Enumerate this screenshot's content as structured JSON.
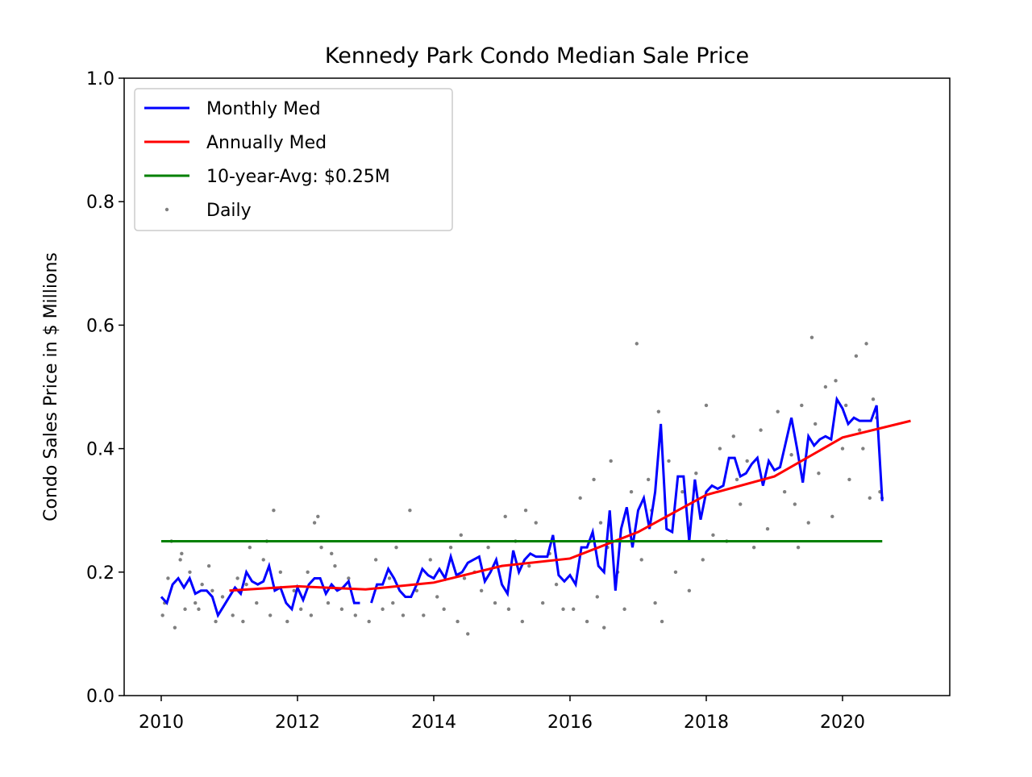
{
  "chart_data": {
    "type": "line",
    "title": "Kennedy Park Condo Median Sale Price",
    "y_label": "Condo Sales Price in $ Millions",
    "xlim": [
      2009.456,
      2021.574
    ],
    "ylim": [
      0,
      1
    ],
    "xticks": [
      2010,
      2012,
      2014,
      2016,
      2018,
      2020
    ],
    "yticks": [
      {
        "value": 0,
        "label": "0.0"
      },
      0.2,
      0.4,
      0.6,
      0.8,
      {
        "value": 1,
        "label": "1.0"
      }
    ],
    "legend": "upper left",
    "series": [
      {
        "name": "Monthly Med",
        "type": "line",
        "color": "#0000ff",
        "x": [
          2010,
          2010.083,
          2010.167,
          2010.25,
          2010.333,
          2010.417,
          2010.5,
          2010.583,
          2010.667,
          2010.75,
          2010.833,
          2010.917,
          2011,
          2011.083,
          2011.167,
          2011.25,
          2011.333,
          2011.417,
          2011.5,
          2011.583,
          2011.667,
          2011.75,
          2011.833,
          2011.917,
          2012,
          2012.083,
          2012.167,
          2012.25,
          2012.333,
          2012.417,
          2012.5,
          2012.583,
          2012.667,
          2012.75,
          2012.833,
          2012.917,
          2013,
          2013.083,
          2013.167,
          2013.25,
          2013.333,
          2013.417,
          2013.5,
          2013.583,
          2013.667,
          2013.75,
          2013.833,
          2013.917,
          2014,
          2014.083,
          2014.167,
          2014.25,
          2014.333,
          2014.417,
          2014.5,
          2014.583,
          2014.667,
          2014.75,
          2014.833,
          2014.917,
          2015,
          2015.083,
          2015.167,
          2015.25,
          2015.333,
          2015.417,
          2015.5,
          2015.583,
          2015.667,
          2015.75,
          2015.833,
          2015.917,
          2016,
          2016.083,
          2016.167,
          2016.25,
          2016.333,
          2016.417,
          2016.5,
          2016.583,
          2016.667,
          2016.75,
          2016.833,
          2016.917,
          2017,
          2017.083,
          2017.167,
          2017.25,
          2017.333,
          2017.417,
          2017.5,
          2017.583,
          2017.667,
          2017.75,
          2017.833,
          2017.917,
          2018,
          2018.083,
          2018.167,
          2018.25,
          2018.333,
          2018.417,
          2018.5,
          2018.583,
          2018.667,
          2018.75,
          2018.833,
          2018.917,
          2019,
          2019.083,
          2019.167,
          2019.25,
          2019.333,
          2019.417,
          2019.5,
          2019.583,
          2019.667,
          2019.75,
          2019.833,
          2019.917,
          2020,
          2020.083,
          2020.167,
          2020.25,
          2020.333,
          2020.417,
          2020.5,
          2020.583
        ],
        "values": [
          0.16,
          0.15,
          0.18,
          0.19,
          0.175,
          0.19,
          0.165,
          0.17,
          0.17,
          0.16,
          0.13,
          0.145,
          0.16,
          0.175,
          0.165,
          0.2,
          0.185,
          0.18,
          0.185,
          0.21,
          0.17,
          0.175,
          0.15,
          0.14,
          0.175,
          0.155,
          0.18,
          0.19,
          0.19,
          0.165,
          0.18,
          0.17,
          0.175,
          0.185,
          0.15,
          0.15,
          null,
          0.15,
          0.18,
          0.18,
          0.205,
          0.19,
          0.17,
          0.16,
          0.16,
          0.18,
          0.205,
          0.195,
          0.19,
          0.205,
          0.19,
          0.225,
          0.195,
          0.2,
          0.215,
          0.22,
          0.225,
          0.185,
          0.2,
          0.22,
          0.18,
          0.165,
          0.235,
          0.2,
          0.22,
          0.23,
          0.225,
          0.225,
          0.225,
          0.26,
          0.195,
          0.185,
          0.195,
          0.18,
          0.24,
          0.24,
          0.265,
          0.21,
          0.2,
          0.3,
          0.17,
          0.27,
          0.305,
          0.24,
          0.3,
          0.32,
          0.27,
          0.33,
          0.44,
          0.27,
          0.265,
          0.355,
          0.355,
          0.25,
          0.35,
          0.285,
          0.33,
          0.34,
          0.335,
          0.34,
          0.385,
          0.385,
          0.355,
          0.36,
          0.375,
          0.385,
          0.34,
          0.38,
          0.365,
          0.37,
          0.41,
          0.45,
          0.4,
          0.345,
          0.42,
          0.405,
          0.415,
          0.42,
          0.415,
          0.48,
          0.465,
          0.44,
          0.45,
          0.445,
          0.445,
          0.445,
          0.47,
          0.315
        ]
      },
      {
        "name": "Annually Med",
        "type": "line",
        "color": "#ff0000",
        "x": [
          2011,
          2012,
          2013,
          2014,
          2015,
          2016,
          2017,
          2018,
          2019,
          2020,
          2021
        ],
        "values": [
          0.17,
          0.177,
          0.172,
          0.183,
          0.21,
          0.222,
          0.265,
          0.325,
          0.355,
          0.418,
          0.445
        ]
      },
      {
        "name": "10-year-Avg: $0.25M",
        "type": "line",
        "color": "#008000",
        "x": [
          2010,
          2020.583
        ],
        "values": [
          0.25,
          0.25
        ]
      },
      {
        "name": "Daily",
        "type": "scatter",
        "color": "#808080",
        "x": [
          2010.02,
          2010.1,
          2010.15,
          2010.2,
          2010.28,
          2010.35,
          2010.42,
          2010.5,
          2010.6,
          2010.7,
          2010.8,
          2010.9,
          2010.05,
          2010.3,
          2010.55,
          2010.75,
          2011.05,
          2011.12,
          2011.2,
          2011.3,
          2011.4,
          2011.5,
          2011.6,
          2011.65,
          2011.75,
          2011.85,
          2011.95,
          2011.25,
          2011.55,
          2012.05,
          2012.15,
          2012.2,
          2012.25,
          2012.35,
          2012.45,
          2012.55,
          2012.65,
          2012.75,
          2012.85,
          2012.3,
          2012.5,
          2013.05,
          2013.15,
          2013.25,
          2013.35,
          2013.45,
          2013.55,
          2013.65,
          2013.75,
          2013.85,
          2013.95,
          2013.4,
          2014.05,
          2014.15,
          2014.25,
          2014.35,
          2014.4,
          2014.5,
          2014.6,
          2014.7,
          2014.8,
          2014.9,
          2014.45,
          2015.05,
          2015.1,
          2015.2,
          2015.3,
          2015.4,
          2015.5,
          2015.6,
          2015.7,
          2015.8,
          2015.9,
          2015.35,
          2016.05,
          2016.15,
          2016.25,
          2016.35,
          2016.4,
          2016.45,
          2016.5,
          2016.6,
          2016.7,
          2016.8,
          2016.9,
          2016.55,
          2016.3,
          2016.98,
          2017.05,
          2017.15,
          2017.25,
          2017.3,
          2017.35,
          2017.45,
          2017.55,
          2017.65,
          2017.75,
          2017.85,
          2017.95,
          2017.2,
          2018.0,
          2018.1,
          2018.2,
          2018.3,
          2018.4,
          2018.5,
          2018.6,
          2018.7,
          2018.8,
          2018.9,
          2018.45,
          2019.05,
          2019.15,
          2019.25,
          2019.35,
          2019.4,
          2019.5,
          2019.55,
          2019.65,
          2019.75,
          2019.85,
          2019.9,
          2019.3,
          2019.6,
          2020.0,
          2020.05,
          2020.1,
          2020.2,
          2020.25,
          2020.3,
          2020.35,
          2020.4,
          2020.45,
          2020.5,
          2020.55,
          2020.58
        ],
        "values": [
          0.13,
          0.19,
          0.25,
          0.11,
          0.22,
          0.14,
          0.2,
          0.15,
          0.18,
          0.21,
          0.12,
          0.16,
          0.15,
          0.23,
          0.14,
          0.17,
          0.13,
          0.19,
          0.12,
          0.24,
          0.15,
          0.22,
          0.13,
          0.3,
          0.2,
          0.12,
          0.17,
          0.18,
          0.25,
          0.14,
          0.2,
          0.13,
          0.28,
          0.24,
          0.15,
          0.21,
          0.14,
          0.19,
          0.13,
          0.29,
          0.23,
          0.12,
          0.22,
          0.14,
          0.19,
          0.24,
          0.13,
          0.3,
          0.17,
          0.13,
          0.22,
          0.15,
          0.16,
          0.14,
          0.24,
          0.12,
          0.26,
          0.1,
          0.2,
          0.17,
          0.24,
          0.15,
          0.19,
          0.29,
          0.14,
          0.25,
          0.12,
          0.21,
          0.28,
          0.15,
          0.23,
          0.18,
          0.14,
          0.3,
          0.14,
          0.32,
          0.12,
          0.35,
          0.16,
          0.28,
          0.11,
          0.38,
          0.2,
          0.14,
          0.33,
          0.24,
          0.25,
          0.57,
          0.22,
          0.35,
          0.15,
          0.46,
          0.12,
          0.38,
          0.2,
          0.33,
          0.17,
          0.36,
          0.22,
          0.3,
          0.47,
          0.26,
          0.4,
          0.25,
          0.42,
          0.31,
          0.38,
          0.24,
          0.43,
          0.27,
          0.35,
          0.46,
          0.33,
          0.39,
          0.24,
          0.47,
          0.28,
          0.58,
          0.36,
          0.5,
          0.29,
          0.51,
          0.31,
          0.44,
          0.4,
          0.47,
          0.35,
          0.55,
          0.43,
          0.4,
          0.57,
          0.32,
          0.48,
          0.45,
          0.33,
          0.32
        ]
      }
    ]
  }
}
